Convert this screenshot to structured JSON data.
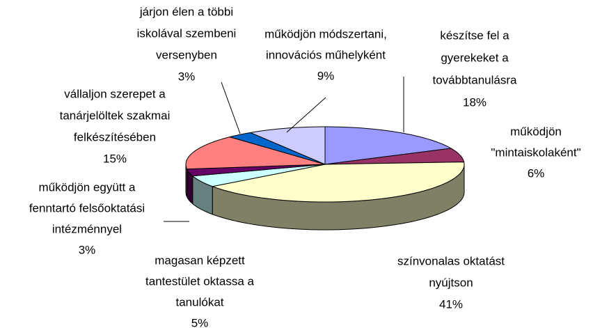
{
  "chart_data": {
    "type": "pie",
    "categories": [
      [
        "készítse fel a",
        "gyerekeket a",
        "továbbtanulásra"
      ],
      [
        "működjön",
        "\"mintaiskolaként\""
      ],
      [
        "színvonalas oktatást",
        "nyújtson"
      ],
      [
        "magasan képzett",
        "tantestület oktassa a",
        "tanulókat"
      ],
      [
        "működjön együtt a",
        "fenntartó felsőoktatási",
        "intézménnyel"
      ],
      [
        "vállaljon szerepet a",
        "tanárjelöltek szakmai",
        "felkészítésében"
      ],
      [
        "járjon élen a többi",
        "iskolával szembeni",
        "versenyben"
      ],
      [
        "működjön módszertani,",
        "innovációs műhelyként"
      ]
    ],
    "values": [
      18,
      6,
      41,
      5,
      3,
      15,
      3,
      9
    ],
    "value_labels": [
      "18%",
      "6%",
      "41%",
      "5%",
      "3%",
      "15%",
      "3%",
      "9%"
    ],
    "colors": [
      "#9999ff",
      "#993366",
      "#ffffcc",
      "#ccffff",
      "#660066",
      "#ff8080",
      "#0066cc",
      "#ccccff"
    ]
  }
}
